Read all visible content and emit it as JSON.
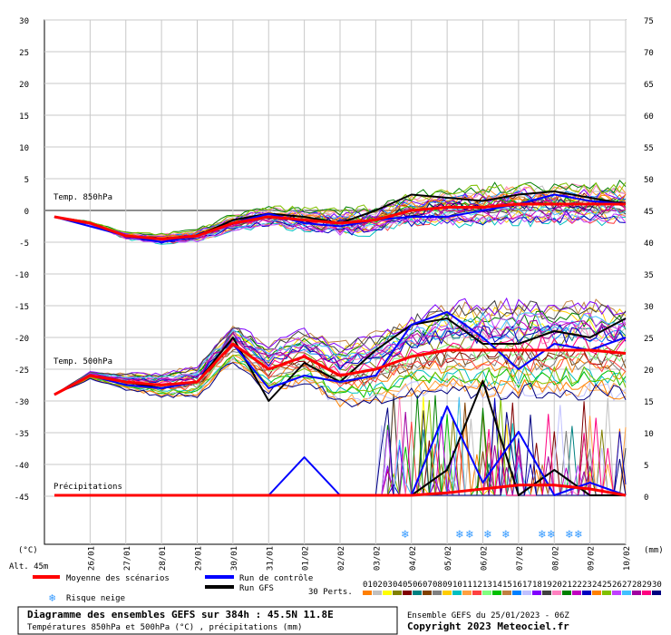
{
  "chart_data": {
    "type": "line",
    "title": "Diagramme des ensembles GEFS sur 384h : 45.5N 11.8E",
    "subtitle": "Températures 850hPa et 500hPa (°C) , précipitations (mm)",
    "run_info": "Ensemble GEFS du 25/01/2023 - 06Z",
    "copyright": "Copyright 2023 Meteociel.fr",
    "altitude": "Alt. 45m",
    "left_axis": {
      "unit": "(°C)",
      "ticks": [
        30,
        25,
        20,
        15,
        10,
        5,
        0,
        -5,
        -10,
        -15,
        -20,
        -25,
        -30,
        -35,
        -40,
        -45
      ]
    },
    "right_axis": {
      "unit": "(mm)",
      "ticks": [
        75,
        70,
        65,
        60,
        55,
        50,
        45,
        40,
        35,
        30,
        25,
        20,
        15,
        10,
        5,
        0
      ]
    },
    "x_ticks": [
      "26/01",
      "27/01",
      "28/01",
      "29/01",
      "30/01",
      "31/01",
      "01/02",
      "02/02",
      "03/02",
      "04/02",
      "05/02",
      "06/02",
      "07/02",
      "08/02",
      "09/02",
      "10/02"
    ],
    "panel_labels": {
      "t850": "Temp. 850hPa",
      "t500": "Temp. 500hPa",
      "precip": "Précipitations"
    },
    "legend": {
      "mean": "Moyenne des scénarios",
      "control": "Run de contrôle",
      "gfs": "Run GFS",
      "snow": "Risque neige",
      "perts": "30 Perts.",
      "pert_ids": [
        "01",
        "02",
        "03",
        "04",
        "05",
        "06",
        "07",
        "08",
        "09",
        "10",
        "11",
        "12",
        "13",
        "14",
        "15",
        "16",
        "17",
        "18",
        "19",
        "20",
        "21",
        "22",
        "23",
        "24",
        "25",
        "26",
        "27",
        "28",
        "29",
        "30"
      ]
    },
    "colors": {
      "mean": "#ff0000",
      "control": "#0000ff",
      "gfs": "#000000",
      "snow": "#3399ff",
      "grid": "#c8c8c8",
      "zero_line": "#8c8c8c",
      "perturbations": [
        "#ff7f00",
        "#c0c0c0",
        "#ffff00",
        "#808000",
        "#800000",
        "#008080",
        "#804000",
        "#808080",
        "#ffcc00",
        "#00c0c0",
        "#ffa040",
        "#ff4040",
        "#80ff80",
        "#00c000",
        "#c08040",
        "#0080ff",
        "#c0c0ff",
        "#8000ff",
        "#404040",
        "#ff80c0",
        "#008000",
        "#c000c0",
        "#0000c0",
        "#ff8000",
        "#80c000",
        "#c040ff",
        "#40c0ff",
        "#a000a0",
        "#ff0080",
        "#000080"
      ]
    },
    "days": [
      25,
      26,
      27,
      28,
      29,
      30,
      31,
      32,
      33,
      34,
      35,
      36,
      37,
      38,
      39,
      40,
      41
    ],
    "series": [
      {
        "name": "Moyenne des scénarios",
        "variable": "t850",
        "values": [
          -1,
          -2,
          -4,
          -4.5,
          -4,
          -2,
          -1,
          -1.5,
          -2,
          -1.5,
          0,
          0.5,
          0.5,
          1,
          1,
          1,
          1
        ]
      },
      {
        "name": "Run de contrôle",
        "variable": "t850",
        "values": [
          -1,
          -2.5,
          -4,
          -5,
          -4,
          -2,
          -0.5,
          -2,
          -2.5,
          -1.5,
          -1,
          -1,
          0,
          1,
          2.5,
          1.5,
          1
        ]
      },
      {
        "name": "Run GFS",
        "variable": "t850",
        "values": [
          -1,
          -2,
          -4,
          -4.5,
          -4,
          -1.5,
          -0.5,
          -1,
          -2,
          0,
          2.5,
          2,
          1.5,
          2.5,
          3,
          2,
          1
        ]
      },
      {
        "name": "Moyenne des scénarios",
        "variable": "t500",
        "values": [
          -29,
          -26,
          -27,
          -27.5,
          -27,
          -21,
          -25,
          -23,
          -26,
          -25,
          -23,
          -22,
          -22,
          -22,
          -22,
          -22,
          -22.5
        ]
      },
      {
        "name": "Run de contrôle",
        "variable": "t500",
        "values": [
          -29,
          -26,
          -27.5,
          -28,
          -27,
          -21,
          -28,
          -26,
          -27,
          -26,
          -18,
          -16,
          -20,
          -25,
          -21,
          -22,
          -20
        ]
      },
      {
        "name": "Run GFS",
        "variable": "t500",
        "values": [
          -29,
          -26,
          -27,
          -28,
          -27,
          -20,
          -30,
          -24,
          -27,
          -22,
          -18,
          -17,
          -21,
          -21,
          -19,
          -20,
          -17
        ]
      },
      {
        "name": "Moyenne des scénarios",
        "variable": "precip",
        "values": [
          0,
          0,
          0,
          0,
          0,
          0,
          0,
          0,
          0,
          0,
          0,
          0.2,
          0.5,
          0.8,
          0.8,
          0.5,
          0
        ]
      },
      {
        "name": "Run de contrôle",
        "variable": "precip",
        "values": [
          0,
          0,
          0,
          0,
          0,
          0,
          0,
          3,
          0,
          0,
          0,
          7,
          1,
          5,
          0,
          1,
          0
        ]
      },
      {
        "name": "Run GFS",
        "variable": "precip",
        "values": [
          0,
          0,
          0,
          0,
          0,
          0,
          0,
          0,
          0,
          0,
          0,
          2,
          9,
          0,
          2,
          0,
          0
        ]
      }
    ]
  }
}
